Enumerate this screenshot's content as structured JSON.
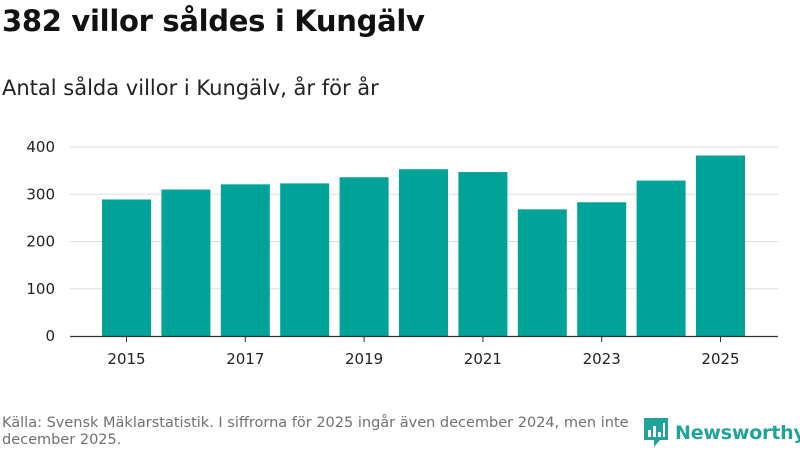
{
  "title": "382 villor såldes i Kungälv",
  "subtitle": "Antal sålda villor i Kungälv, år för år",
  "footer": "Källa: Svensk Mäklarstatistik. I siffrorna för 2025 ingår även december 2024, men inte december 2025.",
  "brand": "Newsworthy",
  "colors": {
    "bar": "#00a398",
    "grid": "#dddddd",
    "axis": "#333333",
    "brand": "#22a39a"
  },
  "chart_data": {
    "type": "bar",
    "categories": [
      "2015",
      "2016",
      "2017",
      "2018",
      "2019",
      "2020",
      "2021",
      "2022",
      "2023",
      "2024",
      "2025"
    ],
    "values": [
      289,
      310,
      321,
      323,
      336,
      353,
      347,
      268,
      283,
      329,
      382
    ],
    "xticks": [
      "2015",
      "2017",
      "2019",
      "2021",
      "2023",
      "2025"
    ],
    "yticks": [
      0,
      100,
      200,
      300,
      400
    ],
    "ylim": [
      0,
      400
    ],
    "title": "382 villor såldes i Kungälv",
    "subtitle": "Antal sålda villor i Kungälv, år för år",
    "xlabel": "",
    "ylabel": "",
    "grid": true,
    "legend": "none"
  }
}
